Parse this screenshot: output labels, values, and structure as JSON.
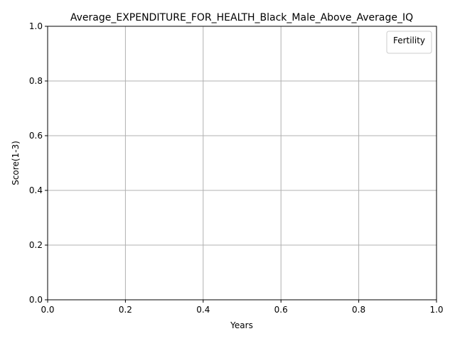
{
  "chart_data": {
    "type": "line",
    "title": "Average_EXPENDITURE_FOR_HEALTH_Black_Male_Above_Average_IQ",
    "xlabel": "Years",
    "ylabel": "Score(1-3)",
    "xlim": [
      0.0,
      1.0
    ],
    "ylim": [
      0.0,
      1.0
    ],
    "xticks": [
      "0.0",
      "0.2",
      "0.4",
      "0.6",
      "0.8",
      "1.0"
    ],
    "yticks": [
      "0.0",
      "0.2",
      "0.4",
      "0.6",
      "0.8",
      "1.0"
    ],
    "grid": true,
    "legend": {
      "title": "Fertility",
      "placement": "top-right",
      "entries": []
    },
    "series": []
  },
  "colors": {
    "grid": "#b0b0b0",
    "axes": "#000000",
    "legend_border": "#cccccc"
  }
}
